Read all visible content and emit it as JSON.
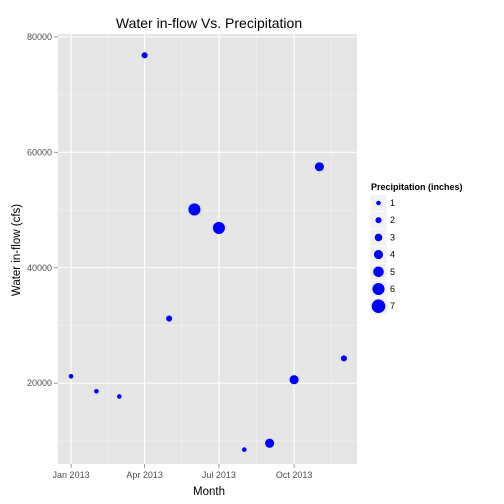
{
  "chart_data": {
    "type": "scatter",
    "title": "Water in-flow Vs. Precipitation",
    "xlabel": "Month",
    "ylabel": "Water in-flow (cfs)",
    "x_ticks": [
      "Jan 2013",
      "Apr 2013",
      "Jul 2013",
      "Oct 2013"
    ],
    "y_ticks": [
      20000,
      40000,
      60000,
      80000
    ],
    "y_tick_labels": [
      "20000",
      "40000",
      "60000",
      "80000"
    ],
    "xlim": [
      "2012-12-16",
      "2013-12-17"
    ],
    "ylim": [
      6000,
      80500
    ],
    "grid": true,
    "point_color": "#0000ff",
    "panel_background": "#e5e5e5",
    "legend": {
      "title": "Precipitation (inches)",
      "placement": "right",
      "levels": [
        1,
        2,
        3,
        4,
        5,
        6,
        7
      ],
      "labels": [
        "1",
        "2",
        "3",
        "4",
        "5",
        "6",
        "7"
      ]
    },
    "points": [
      {
        "x": "2013-01-01",
        "y": 21200,
        "precip": 1
      },
      {
        "x": "2013-02-01",
        "y": 18600,
        "precip": 1
      },
      {
        "x": "2013-03-01",
        "y": 17700,
        "precip": 1
      },
      {
        "x": "2013-04-01",
        "y": 76800,
        "precip": 2
      },
      {
        "x": "2013-05-01",
        "y": 31200,
        "precip": 2
      },
      {
        "x": "2013-06-01",
        "y": 50100,
        "precip": 6
      },
      {
        "x": "2013-07-01",
        "y": 46900,
        "precip": 6
      },
      {
        "x": "2013-08-01",
        "y": 8500,
        "precip": 1
      },
      {
        "x": "2013-09-01",
        "y": 9600,
        "precip": 4
      },
      {
        "x": "2013-10-01",
        "y": 20600,
        "precip": 4
      },
      {
        "x": "2013-11-01",
        "y": 57500,
        "precip": 4
      },
      {
        "x": "2013-12-01",
        "y": 24300,
        "precip": 2
      }
    ]
  }
}
